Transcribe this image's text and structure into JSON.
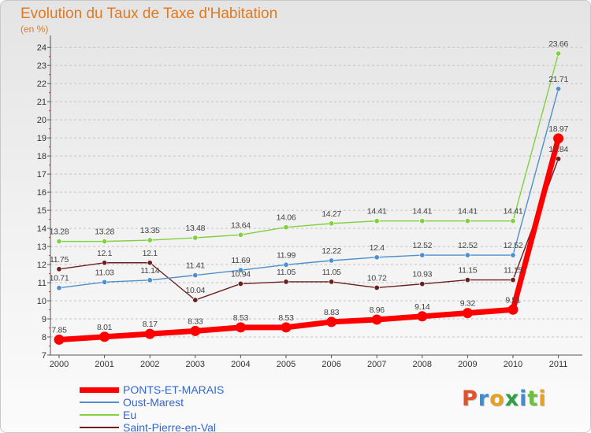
{
  "header": {
    "title": "Evolution du Taux de Taxe d'Habitation",
    "subtitle": "(en %)"
  },
  "logo": {
    "letters": [
      "P",
      "r",
      "o",
      "x",
      "i",
      "t",
      "i"
    ],
    "colors": [
      "#e0532a",
      "#3a8fd6",
      "#e8a020",
      "#2f9e44",
      "#3a8fd6",
      "#6bbf3a",
      "#e8a020"
    ]
  },
  "chart_data": {
    "type": "line",
    "x": [
      "2000",
      "2001",
      "2002",
      "2003",
      "2004",
      "2005",
      "2006",
      "2007",
      "2008",
      "2009",
      "2010",
      "2011"
    ],
    "ylim": [
      7,
      24.4
    ],
    "yticks": [
      7,
      8,
      9,
      10,
      11,
      12,
      13,
      14,
      15,
      16,
      17,
      18,
      19,
      20,
      21,
      22,
      23,
      24
    ],
    "grid": "horizontal dashed",
    "legend_position": "bottom-left",
    "series": [
      {
        "name": "PONTS-ET-MARAIS",
        "color": "#ff0000",
        "values": [
          7.85,
          8.01,
          8.17,
          8.33,
          8.53,
          8.53,
          8.83,
          8.96,
          9.14,
          9.32,
          9.51,
          18.97
        ],
        "labels": [
          "7.85",
          "8.01",
          "8.17",
          "8.33",
          "8.53",
          "8.53",
          "8.83",
          "8.96",
          "9.14",
          "9.32",
          "9.51",
          "18.97"
        ]
      },
      {
        "name": "Oust-Marest",
        "color": "#4f90cc",
        "values": [
          10.71,
          11.03,
          11.14,
          11.41,
          11.69,
          11.99,
          12.22,
          12.4,
          12.52,
          12.52,
          12.52,
          21.71
        ],
        "labels": [
          "10.71",
          "11.03",
          "11.14",
          "11.41",
          "11.69",
          "11.99",
          "12.22",
          "12.4",
          "12.52",
          "12.52",
          "12.52",
          "21.71"
        ]
      },
      {
        "name": "Eu",
        "color": "#80d040",
        "values": [
          13.28,
          13.28,
          13.35,
          13.48,
          13.64,
          14.06,
          14.27,
          14.41,
          14.41,
          14.41,
          14.41,
          23.66
        ],
        "labels": [
          "13.28",
          "13.28",
          "13.35",
          "13.48",
          "13.64",
          "14.06",
          "14.27",
          "14.41",
          "14.41",
          "14.41",
          "14.41",
          "23.66"
        ]
      },
      {
        "name": "Saint-Pierre-en-Val",
        "color": "#6b2020",
        "values": [
          11.75,
          12.1,
          12.1,
          10.04,
          10.94,
          11.05,
          11.05,
          10.72,
          10.93,
          11.15,
          11.15,
          17.84
        ],
        "labels": [
          "11.75",
          "12.1",
          "12.1",
          "10.04",
          "10.94",
          "11.05",
          "11.05",
          "10.72",
          "10.93",
          "11.15",
          "11.15",
          "17.84"
        ]
      }
    ]
  }
}
